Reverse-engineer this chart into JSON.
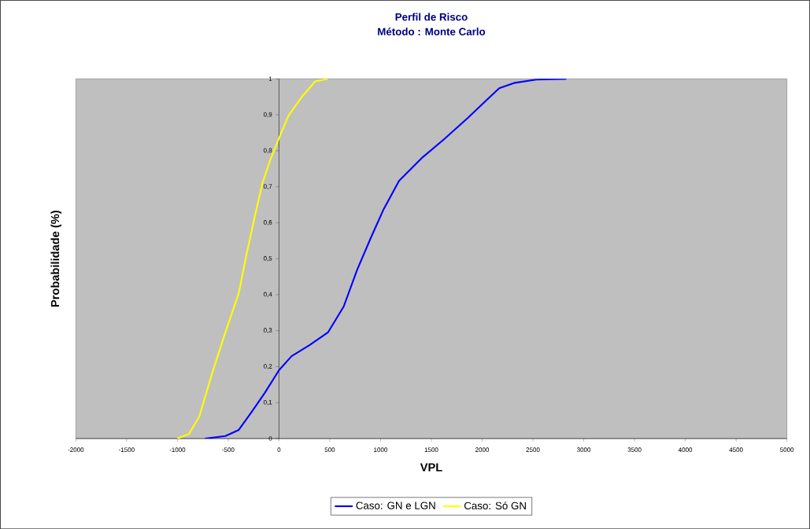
{
  "chart_data": {
    "type": "line",
    "title": "Perfil de Risco",
    "subtitle": "Método : Monte Carlo",
    "xlabel": "VPL",
    "ylabel": "Probabilidade (%)",
    "xlim": [
      -2000,
      5000
    ],
    "ylim": [
      0,
      1
    ],
    "xticks": [
      -2000,
      -1500,
      -1000,
      -500,
      0,
      500,
      1000,
      1500,
      2000,
      2500,
      3000,
      3500,
      4000,
      4500,
      5000
    ],
    "yticks": [
      0,
      {
        "value": 0.1,
        "label": "0,1"
      },
      {
        "value": 0.2,
        "label": "0,2"
      },
      {
        "value": 0.3,
        "label": "0,3"
      },
      {
        "value": 0.4,
        "label": "0,4"
      },
      {
        "value": 0.5,
        "label": "0,5"
      },
      {
        "value": 0.6,
        "label": "0,6"
      },
      {
        "value": 0.7,
        "label": "0,7"
      },
      {
        "value": 0.8,
        "label": "0,8"
      },
      {
        "value": 0.9,
        "label": "0,9"
      },
      1
    ],
    "legend": "bottom",
    "series": [
      {
        "name": "Caso: GN e LGN",
        "color": "#0000ff",
        "x": [
          -730,
          -528,
          -396,
          -264,
          -140,
          0,
          124,
          303,
          482,
          637,
          769,
          901,
          1026,
          1181,
          1414,
          1624,
          1857,
          2036,
          2168,
          2323,
          2533,
          2828
        ],
        "values": [
          0,
          0.007,
          0.024,
          0.076,
          0.127,
          0.19,
          0.229,
          0.26,
          0.295,
          0.367,
          0.469,
          0.556,
          0.635,
          0.716,
          0.782,
          0.832,
          0.891,
          0.939,
          0.974,
          0.989,
          0.998,
          1.0
        ]
      },
      {
        "name": "Caso: Só GN",
        "color": "#ffff00",
        "x": [
          -1002,
          -886,
          -785,
          -653,
          -528,
          -396,
          -319,
          -241,
          -163,
          -85,
          0,
          93,
          225,
          357,
          482
        ],
        "values": [
          0,
          0.013,
          0.061,
          0.186,
          0.295,
          0.404,
          0.513,
          0.614,
          0.71,
          0.775,
          0.835,
          0.897,
          0.95,
          0.993,
          1.0
        ]
      }
    ]
  }
}
